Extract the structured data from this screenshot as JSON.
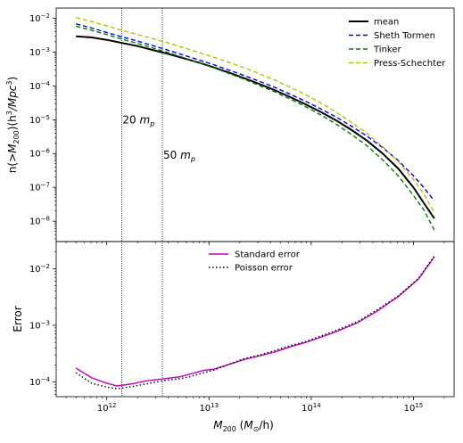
{
  "chart_data": [
    {
      "type": "line",
      "panel": "top",
      "x_scale": "log",
      "y_scale": "log",
      "xlim": [
        320000000000.0,
        2500000000000000.0
      ],
      "ylim": [
        2.5e-09,
        0.02
      ],
      "xlabel": "M_200 (M_sun/h)",
      "ylabel": "n(>M_200)(h^3/Mpc^3)",
      "legend_position": "top-right",
      "x": [
        500000000000.0,
        710000000000.0,
        1000000000000.0,
        1410000000000.0,
        2000000000000.0,
        2820000000000.0,
        4000000000000.0,
        5600000000000.0,
        7900000000000.0,
        11200000000000.0,
        15800000000000.0,
        22400000000000.0,
        31600000000000.0,
        44700000000000.0,
        63000000000000.0,
        89000000000000.0,
        126000000000000.0,
        178000000000000.0,
        250000000000000.0,
        355000000000000.0,
        500000000000000.0,
        710000000000000.0,
        1000000000000000.0,
        1260000000000000.0,
        1600000000000000.0
      ],
      "series": [
        {
          "name": "mean",
          "color": "#000000",
          "dash": "solid",
          "values": [
            0.0029,
            0.0027,
            0.0023,
            0.00185,
            0.0015,
            0.00115,
            0.00088,
            0.00066,
            0.00049,
            0.00035,
            0.000245,
            0.000167,
            0.000112,
            7.3e-05,
            4.6e-05,
            2.8e-05,
            1.65e-05,
            9.3e-06,
            4.9e-06,
            2.35e-06,
            1e-06,
            3.6e-07,
            1e-07,
            3.5e-08,
            1.2e-08
          ]
        },
        {
          "name": "Sheth Tormen",
          "color": "#0000ff",
          "dash": "dashed",
          "values": [
            0.0068,
            0.0051,
            0.0038,
            0.0028,
            0.0021,
            0.00155,
            0.00113,
            0.00082,
            0.00059,
            0.00042,
            0.00029,
            0.0002,
            0.000134,
            8.8e-05,
            5.6e-05,
            3.45e-05,
            2.05e-05,
            1.17e-05,
            6.3e-06,
            3.2e-06,
            1.5e-06,
            6.2e-07,
            2.2e-07,
            1e-07,
            4e-08
          ]
        },
        {
          "name": "Tinker",
          "color": "#008000",
          "dash": "dashed",
          "values": [
            0.0058,
            0.0044,
            0.0033,
            0.0024,
            0.0018,
            0.00132,
            0.00096,
            0.00069,
            0.00049,
            0.00034,
            0.00023,
            0.000155,
            0.0001,
            6.5e-05,
            4e-05,
            2.4e-05,
            1.35e-05,
            7.2e-06,
            3.6e-06,
            1.65e-06,
            6.5e-07,
            2.2e-07,
            5.8e-08,
            2.2e-08,
            5.5e-09
          ]
        },
        {
          "name": "Press-Schechter",
          "color": "#bfbf00",
          "dash": "dashed",
          "values": [
            0.0105,
            0.0079,
            0.0059,
            0.0044,
            0.0033,
            0.0025,
            0.00185,
            0.00135,
            0.00098,
            0.0007,
            0.00049,
            0.00034,
            0.000225,
            0.000145,
            9e-05,
            5.4e-05,
            3.05e-05,
            1.63e-05,
            8.2e-06,
            3.8e-06,
            1.6e-06,
            5.8e-07,
            1.7e-07,
            6.5e-08,
            1.8e-08
          ]
        }
      ],
      "annotations": [
        {
          "x": 1400000000000.0,
          "text_main": "20 ",
          "text_var": "m",
          "text_sub": "p",
          "label_y": 1e-05
        },
        {
          "x": 3500000000000.0,
          "text_main": "50 ",
          "text_var": "m",
          "text_sub": "p",
          "label_y": 9e-07
        }
      ]
    },
    {
      "type": "line",
      "panel": "bottom",
      "x_scale": "log",
      "y_scale": "log",
      "xlim": [
        320000000000.0,
        2500000000000000.0
      ],
      "ylim": [
        5.5e-05,
        0.03
      ],
      "xlabel": "M_200 (M_sun/h)",
      "ylabel": "Error",
      "legend_position": "top-center",
      "x": [
        500000000000.0,
        710000000000.0,
        1000000000000.0,
        1260000000000.0,
        1780000000000.0,
        2500000000000.0,
        3550000000000.0,
        5000000000000.0,
        6300000000000.0,
        8900000000000.0,
        11200000000000.0,
        15800000000000.0,
        22400000000000.0,
        31600000000000.0,
        44700000000000.0,
        63000000000000.0,
        89000000000000.0,
        126000000000000.0,
        178000000000000.0,
        282000000000000.0,
        447000000000000.0,
        710000000000000.0,
        1120000000000000.0,
        1600000000000000.0
      ],
      "series": [
        {
          "name": "Standard error",
          "color": "#bf00bf",
          "dash": "solid",
          "values": [
            0.000175,
            0.000118,
            9.5e-05,
            8.5e-05,
            9.3e-05,
            0.000105,
            0.000113,
            0.000122,
            0.000135,
            0.00016,
            0.000168,
            0.000205,
            0.00025,
            0.00029,
            0.00034,
            0.00042,
            0.0005,
            0.00062,
            0.00078,
            0.0011,
            0.0018,
            0.0032,
            0.0065,
            0.016
          ]
        },
        {
          "name": "Poisson error",
          "color": "#000000",
          "dash": "dotted",
          "values": [
            0.000145,
            9.5e-05,
            8.1e-05,
            7.6e-05,
            8.3e-05,
            9.3e-05,
            0.000105,
            0.000113,
            0.000122,
            0.000145,
            0.000162,
            0.000205,
            0.00026,
            0.0003,
            0.00036,
            0.00044,
            0.00052,
            0.00065,
            0.00082,
            0.00115,
            0.0019,
            0.0033,
            0.0067,
            0.0165
          ]
        }
      ]
    }
  ],
  "labels": {
    "top_ylabel_main": "n(>",
    "top_ylabel_var": "M",
    "top_ylabel_sub": "200",
    "top_ylabel_tail": ")(h",
    "top_ylabel_sup1": "3",
    "top_ylabel_mid": "/Mpc",
    "top_ylabel_sup2": "3",
    "top_ylabel_end": ")",
    "bottom_ylabel": "Error",
    "xlabel_var": "M",
    "xlabel_sub": "200",
    "xlabel_open": " (",
    "xlabel_unit_var": "M",
    "xlabel_unit_sub": "⊙",
    "xlabel_close": "/h)"
  },
  "ticks": {
    "x": [
      {
        "value": 1000000000000.0,
        "exp": "12"
      },
      {
        "value": 10000000000000.0,
        "exp": "13"
      },
      {
        "value": 100000000000000.0,
        "exp": "14"
      },
      {
        "value": 1000000000000000.0,
        "exp": "15"
      }
    ],
    "top_y": [
      {
        "value": 0.01,
        "exp": "−2"
      },
      {
        "value": 0.001,
        "exp": "−3"
      },
      {
        "value": 0.0001,
        "exp": "−4"
      },
      {
        "value": 1e-05,
        "exp": "−5"
      },
      {
        "value": 1e-06,
        "exp": "−6"
      },
      {
        "value": 1e-07,
        "exp": "−7"
      },
      {
        "value": 1e-08,
        "exp": "−8"
      }
    ],
    "bottom_y": [
      {
        "value": 0.01,
        "exp": "−2"
      },
      {
        "value": 0.001,
        "exp": "−3"
      },
      {
        "value": 0.0001,
        "exp": "−4"
      }
    ],
    "base": "10"
  }
}
